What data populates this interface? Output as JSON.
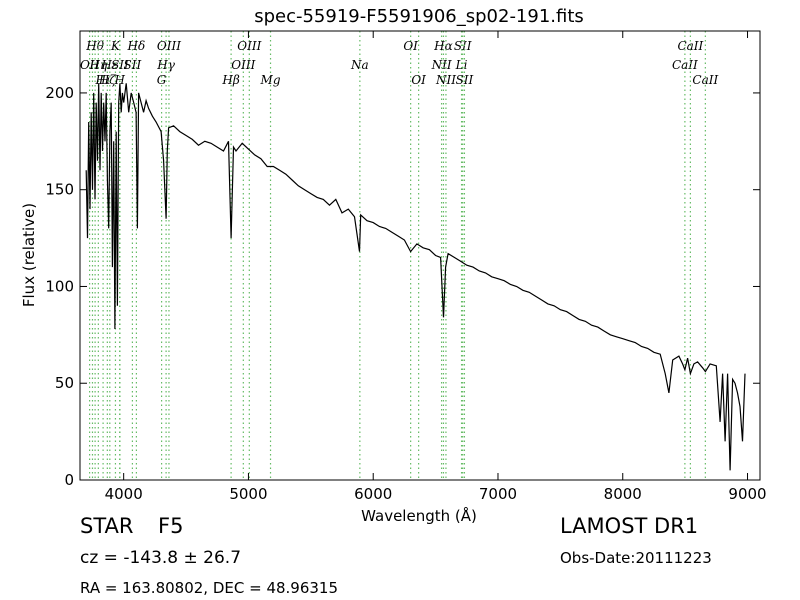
{
  "chart_data": {
    "type": "line",
    "title": "spec-55919-F5591906_sp02-191.fits",
    "xlabel": "Wavelength (Å)",
    "ylabel": "Flux (relative)",
    "xlim": [
      3650,
      9100
    ],
    "ylim": [
      0,
      232
    ],
    "xticks": [
      4000,
      5000,
      6000,
      7000,
      8000,
      9000
    ],
    "yticks": [
      0,
      50,
      100,
      150,
      200
    ],
    "grid": false,
    "line_color": "#000000",
    "marker_color": "#66bb66",
    "series": [
      {
        "x": [
          3700,
          3710,
          3720,
          3730,
          3740,
          3750,
          3760,
          3770,
          3780,
          3790,
          3800,
          3810,
          3820,
          3830,
          3840,
          3850,
          3860,
          3870,
          3880,
          3890,
          3900,
          3910,
          3920,
          3930,
          3940,
          3950,
          3960,
          3970,
          3980,
          3990,
          4000,
          4020,
          4040,
          4060,
          4080,
          4100,
          4110,
          4120,
          4140,
          4160,
          4180,
          4200,
          4230,
          4260,
          4300,
          4320,
          4340,
          4350,
          4360,
          4400,
          4450,
          4500,
          4550,
          4600,
          4650,
          4700,
          4750,
          4800,
          4840,
          4861,
          4880,
          4900,
          4950,
          5000,
          5050,
          5100,
          5150,
          5200,
          5250,
          5300,
          5350,
          5400,
          5450,
          5500,
          5550,
          5600,
          5650,
          5700,
          5750,
          5800,
          5850,
          5890,
          5900,
          5950,
          6000,
          6050,
          6100,
          6150,
          6200,
          6250,
          6300,
          6350,
          6400,
          6450,
          6500,
          6540,
          6563,
          6580,
          6600,
          6650,
          6700,
          6750,
          6800,
          6850,
          6900,
          6950,
          7000,
          7050,
          7100,
          7150,
          7200,
          7250,
          7300,
          7350,
          7400,
          7450,
          7500,
          7550,
          7600,
          7650,
          7700,
          7750,
          7800,
          7850,
          7900,
          7950,
          8000,
          8050,
          8100,
          8150,
          8200,
          8250,
          8300,
          8340,
          8370,
          8400,
          8450,
          8480,
          8498,
          8520,
          8542,
          8570,
          8600,
          8640,
          8662,
          8700,
          8750,
          8780,
          8800,
          8820,
          8840,
          8860,
          8880,
          8900,
          8920,
          8940,
          8960,
          8980
        ],
        "values": [
          160,
          125,
          185,
          140,
          190,
          150,
          200,
          145,
          195,
          165,
          205,
          160,
          200,
          170,
          195,
          175,
          200,
          155,
          130,
          180,
          195,
          110,
          175,
          78,
          180,
          90,
          195,
          205,
          190,
          200,
          195,
          205,
          190,
          200,
          195,
          190,
          130,
          200,
          195,
          190,
          196,
          192,
          188,
          185,
          180,
          165,
          135,
          170,
          182,
          183,
          180,
          178,
          176,
          173,
          175,
          174,
          172,
          170,
          175,
          125,
          172,
          170,
          174,
          171,
          168,
          166,
          162,
          162,
          160,
          158,
          155,
          152,
          150,
          148,
          146,
          145,
          142,
          145,
          138,
          140,
          136,
          118,
          137,
          134,
          133,
          131,
          130,
          128,
          126,
          124,
          118,
          122,
          120,
          119,
          116,
          115,
          84,
          110,
          117,
          115,
          113,
          111,
          110,
          108,
          107,
          105,
          104,
          103,
          101,
          100,
          98,
          97,
          95,
          93,
          91,
          90,
          88,
          87,
          85,
          83,
          82,
          80,
          79,
          77,
          75,
          74,
          73,
          72,
          71,
          69,
          68,
          66,
          65,
          55,
          45,
          62,
          64,
          60,
          57,
          63,
          55,
          60,
          61,
          58,
          56,
          60,
          59,
          30,
          55,
          20,
          55,
          5,
          52,
          50,
          45,
          38,
          20,
          55
        ]
      }
    ],
    "line_markers": [
      {
        "x": 3727,
        "row": 1,
        "label": "OII"
      },
      {
        "x": 3750,
        "row": 0,
        "label": ""
      },
      {
        "x": 3771,
        "row": 0,
        "label": "Hθ"
      },
      {
        "x": 3797,
        "row": 1,
        "label": "Hη"
      },
      {
        "x": 3835,
        "row": 2,
        "label": "Hι"
      },
      {
        "x": 3869,
        "row": 2,
        "label": "Hζ"
      },
      {
        "x": 3889,
        "row": 1,
        "label": "Hε"
      },
      {
        "x": 3934,
        "row": 0,
        "label": "K"
      },
      {
        "x": 3968,
        "row": 2,
        "label": "H"
      },
      {
        "x": 3970,
        "row": 1,
        "label": "SII"
      },
      {
        "x": 4070,
        "row": 1,
        "label": "SII"
      },
      {
        "x": 4102,
        "row": 0,
        "label": "Hδ"
      },
      {
        "x": 4304,
        "row": 2,
        "label": "G"
      },
      {
        "x": 4340,
        "row": 1,
        "label": "Hγ"
      },
      {
        "x": 4363,
        "row": 0,
        "label": "OIII"
      },
      {
        "x": 4861,
        "row": 2,
        "label": "Hβ"
      },
      {
        "x": 4959,
        "row": 1,
        "label": "OIII"
      },
      {
        "x": 5007,
        "row": 0,
        "label": "OIII"
      },
      {
        "x": 5177,
        "row": 2,
        "label": "Mg"
      },
      {
        "x": 5893,
        "row": 1,
        "label": "Na"
      },
      {
        "x": 6300,
        "row": 0,
        "label": "OI"
      },
      {
        "x": 6364,
        "row": 2,
        "label": "OI"
      },
      {
        "x": 6548,
        "row": 1,
        "label": "NII"
      },
      {
        "x": 6563,
        "row": 0,
        "label": "Hα"
      },
      {
        "x": 6583,
        "row": 2,
        "label": "NII"
      },
      {
        "x": 6708,
        "row": 1,
        "label": "Li"
      },
      {
        "x": 6717,
        "row": 0,
        "label": "SII"
      },
      {
        "x": 6731,
        "row": 2,
        "label": "SII"
      },
      {
        "x": 8498,
        "row": 1,
        "label": "CaII"
      },
      {
        "x": 8542,
        "row": 0,
        "label": "CaII"
      },
      {
        "x": 8662,
        "row": 2,
        "label": "CaII"
      }
    ]
  },
  "info": {
    "class": "STAR",
    "subclass": "F5",
    "survey": "LAMOST DR1",
    "cz": "cz = -143.8 ± 26.7",
    "obs_date": "Obs-Date:20111223",
    "radec": "RA = 163.80802, DEC = 48.96315"
  }
}
